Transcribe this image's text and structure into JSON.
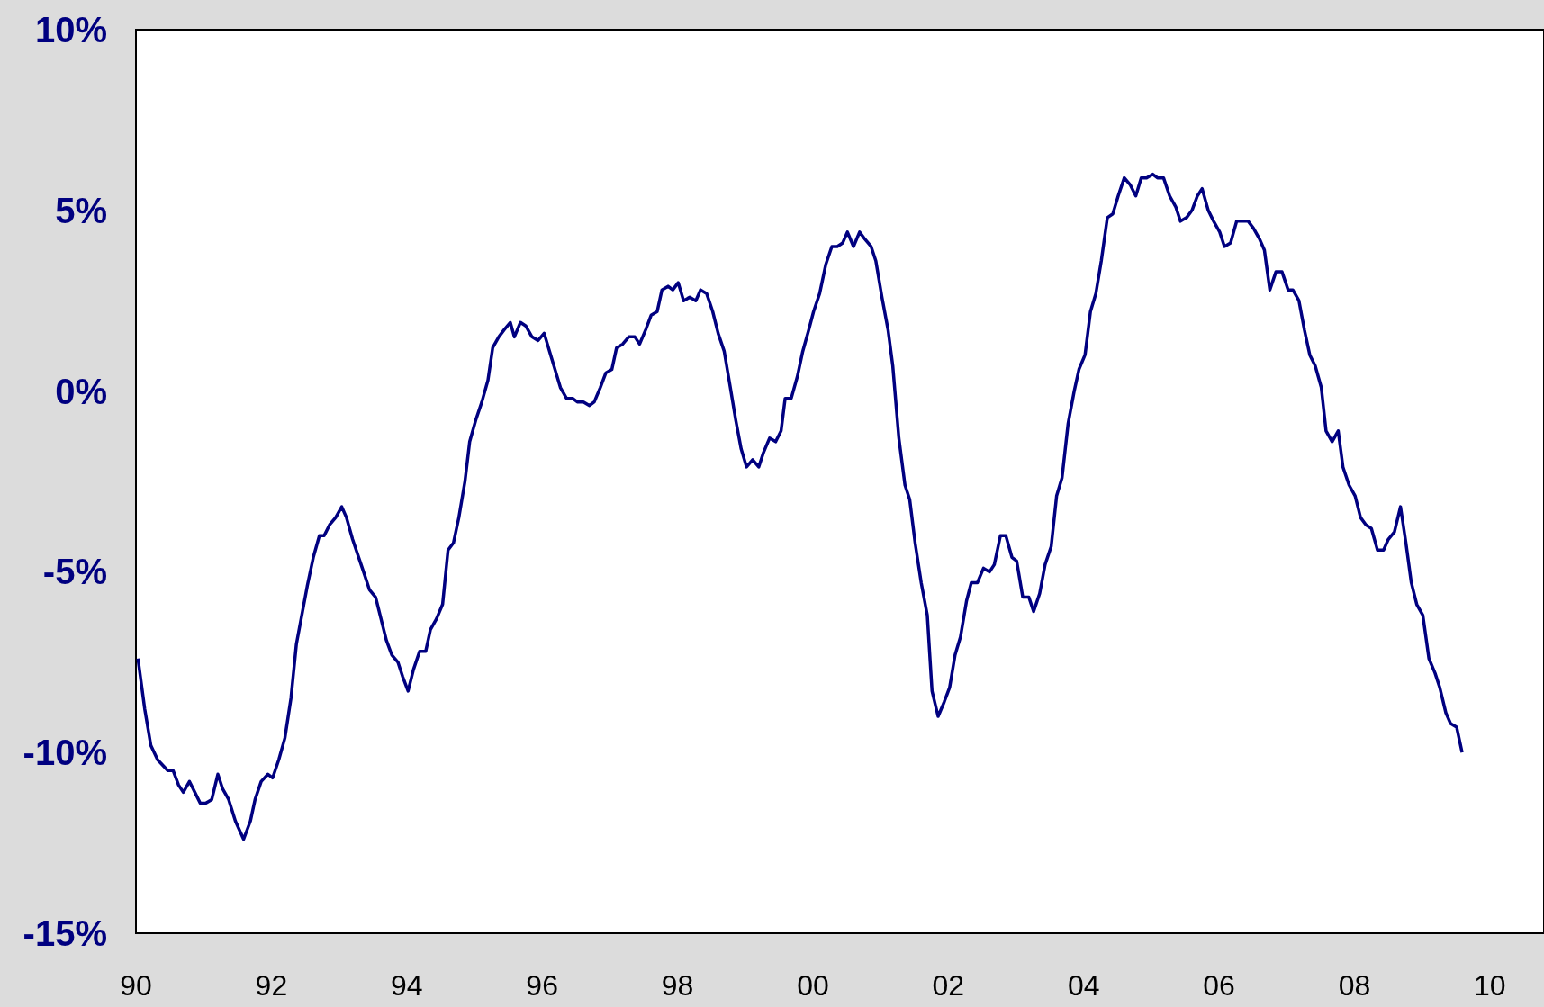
{
  "chart_data": {
    "type": "line",
    "x": [
      1990.03,
      1990.13,
      1990.22,
      1990.32,
      1990.47,
      1990.55,
      1990.63,
      1990.7,
      1990.79,
      1990.87,
      1990.95,
      1991.03,
      1991.12,
      1991.21,
      1991.28,
      1991.37,
      1991.47,
      1991.59,
      1991.69,
      1991.76,
      1991.85,
      1991.95,
      1992.02,
      1992.11,
      1992.2,
      1992.29,
      1992.37,
      1992.46,
      1992.53,
      1992.62,
      1992.71,
      1992.78,
      1992.86,
      1992.95,
      1993.04,
      1993.11,
      1993.2,
      1993.29,
      1993.38,
      1993.45,
      1993.54,
      1993.62,
      1993.7,
      1993.78,
      1993.87,
      1993.94,
      1994.02,
      1994.1,
      1994.19,
      1994.28,
      1994.35,
      1994.44,
      1994.53,
      1994.61,
      1994.69,
      1994.77,
      1994.86,
      1994.93,
      1995.02,
      1995.11,
      1995.2,
      1995.27,
      1995.36,
      1995.44,
      1995.53,
      1995.59,
      1995.68,
      1995.76,
      1995.85,
      1995.94,
      1996.03,
      1996.11,
      1996.19,
      1996.27,
      1996.36,
      1996.45,
      1996.52,
      1996.61,
      1996.7,
      1996.77,
      1996.86,
      1996.94,
      1997.03,
      1997.1,
      1997.19,
      1997.28,
      1997.37,
      1997.44,
      1997.53,
      1997.61,
      1997.7,
      1997.77,
      1997.86,
      1997.93,
      1998.01,
      1998.09,
      1998.18,
      1998.27,
      1998.34,
      1998.43,
      1998.52,
      1998.6,
      1998.69,
      1998.78,
      1998.86,
      1998.94,
      1999.02,
      1999.11,
      1999.2,
      1999.27,
      1999.36,
      1999.45,
      1999.53,
      1999.59,
      1999.68,
      1999.77,
      1999.85,
      1999.94,
      2000.01,
      2000.1,
      2000.19,
      2000.28,
      2000.36,
      2000.44,
      2000.51,
      2000.6,
      2000.69,
      2000.77,
      2000.86,
      2000.93,
      2001.02,
      2001.11,
      2001.18,
      2001.27,
      2001.36,
      2001.43,
      2001.51,
      2001.6,
      2001.69,
      2001.76,
      2001.85,
      2001.94,
      2002.02,
      2002.1,
      2002.18,
      2002.27,
      2002.34,
      2002.43,
      2002.52,
      2002.61,
      2002.68,
      2002.77,
      2002.85,
      2002.94,
      2003.01,
      2003.1,
      2003.19,
      2003.26,
      2003.35,
      2003.43,
      2003.52,
      2003.6,
      2003.68,
      2003.77,
      2003.86,
      2003.93,
      2004.02,
      2004.1,
      2004.18,
      2004.26,
      2004.35,
      2004.43,
      2004.51,
      2004.6,
      2004.69,
      2004.77,
      2004.85,
      2004.93,
      2005.02,
      2005.09,
      2005.18,
      2005.27,
      2005.36,
      2005.43,
      2005.52,
      2005.6,
      2005.68,
      2005.75,
      2005.84,
      2005.92,
      2006.01,
      2006.08,
      2006.17,
      2006.26,
      2006.35,
      2006.43,
      2006.51,
      2006.6,
      2006.67,
      2006.75,
      2006.84,
      2006.93,
      2007.02,
      2007.09,
      2007.18,
      2007.26,
      2007.34,
      2007.42,
      2007.51,
      2007.58,
      2007.67,
      2007.76,
      2007.83,
      2007.92,
      2008.01,
      2008.09,
      2008.17,
      2008.25,
      2008.34,
      2008.43,
      2008.5,
      2008.59,
      2008.68,
      2008.76,
      2008.84,
      2008.92,
      2009.01,
      2009.1,
      2009.19,
      2009.26,
      2009.35,
      2009.42,
      2009.51,
      2009.59
    ],
    "series": [
      {
        "color": "#000080",
        "values": [
          -7.4,
          -8.8,
          -9.8,
          -10.2,
          -10.5,
          -10.5,
          -10.9,
          -11.1,
          -10.8,
          -11.1,
          -11.4,
          -11.4,
          -11.3,
          -10.6,
          -11.0,
          -11.3,
          -11.9,
          -12.4,
          -11.9,
          -11.3,
          -10.8,
          -10.6,
          -10.7,
          -10.2,
          -9.6,
          -8.5,
          -7.0,
          -6.1,
          -5.4,
          -4.6,
          -4.0,
          -4.0,
          -3.7,
          -3.5,
          -3.2,
          -3.5,
          -4.1,
          -4.6,
          -5.1,
          -5.5,
          -5.7,
          -6.3,
          -6.9,
          -7.3,
          -7.5,
          -7.9,
          -8.3,
          -7.7,
          -7.2,
          -7.2,
          -6.6,
          -6.3,
          -5.9,
          -4.4,
          -4.2,
          -3.5,
          -2.5,
          -1.4,
          -0.8,
          -0.3,
          0.3,
          1.2,
          1.5,
          1.7,
          1.9,
          1.5,
          1.9,
          1.8,
          1.5,
          1.4,
          1.6,
          1.1,
          0.6,
          0.1,
          -0.2,
          -0.2,
          -0.3,
          -0.3,
          -0.4,
          -0.3,
          0.1,
          0.5,
          0.6,
          1.2,
          1.3,
          1.5,
          1.5,
          1.3,
          1.7,
          2.1,
          2.2,
          2.8,
          2.9,
          2.8,
          3.0,
          2.5,
          2.6,
          2.5,
          2.8,
          2.7,
          2.2,
          1.6,
          1.1,
          0.1,
          -0.8,
          -1.6,
          -2.1,
          -1.9,
          -2.1,
          -1.7,
          -1.3,
          -1.4,
          -1.1,
          -0.2,
          -0.2,
          0.4,
          1.1,
          1.7,
          2.2,
          2.7,
          3.5,
          4.0,
          4.0,
          4.1,
          4.4,
          4.0,
          4.4,
          4.2,
          4.0,
          3.6,
          2.6,
          1.7,
          0.7,
          -1.3,
          -2.6,
          -3.0,
          -4.2,
          -5.3,
          -6.2,
          -8.3,
          -9.0,
          -8.6,
          -8.2,
          -7.3,
          -6.8,
          -5.8,
          -5.3,
          -5.3,
          -4.9,
          -5.0,
          -4.8,
          -4.0,
          -4.0,
          -4.6,
          -4.7,
          -5.7,
          -5.7,
          -6.1,
          -5.6,
          -4.8,
          -4.3,
          -2.9,
          -2.4,
          -0.9,
          0.0,
          0.6,
          1.0,
          2.2,
          2.7,
          3.6,
          4.8,
          4.9,
          5.4,
          5.9,
          5.7,
          5.4,
          5.9,
          5.9,
          6.0,
          5.9,
          5.9,
          5.4,
          5.1,
          4.7,
          4.8,
          5.0,
          5.4,
          5.6,
          5.0,
          4.7,
          4.4,
          4.0,
          4.1,
          4.7,
          4.7,
          4.7,
          4.5,
          4.2,
          3.9,
          2.8,
          3.3,
          3.3,
          2.8,
          2.8,
          2.5,
          1.7,
          1.0,
          0.7,
          0.1,
          -1.1,
          -1.4,
          -1.1,
          -2.1,
          -2.6,
          -2.9,
          -3.5,
          -3.7,
          -3.8,
          -4.4,
          -4.4,
          -4.1,
          -3.9,
          -3.2,
          -4.2,
          -5.3,
          -5.9,
          -6.2,
          -7.4,
          -7.8,
          -8.2,
          -8.9,
          -9.2,
          -9.3,
          -10.0
        ]
      }
    ],
    "xlim": [
      1990,
      2010.8
    ],
    "xticks": [
      {
        "value": 1990,
        "label": "90"
      },
      {
        "value": 1992,
        "label": "92"
      },
      {
        "value": 1994,
        "label": "94"
      },
      {
        "value": 1996,
        "label": "96"
      },
      {
        "value": 1998,
        "label": "98"
      },
      {
        "value": 2000,
        "label": "00"
      },
      {
        "value": 2002,
        "label": "02"
      },
      {
        "value": 2004,
        "label": "04"
      },
      {
        "value": 2006,
        "label": "06"
      },
      {
        "value": 2008,
        "label": "08"
      },
      {
        "value": 2010,
        "label": "10"
      }
    ],
    "ylim": [
      -15,
      10
    ],
    "yticks": [
      {
        "value": -15,
        "label": "-15%"
      },
      {
        "value": -10,
        "label": "-10%"
      },
      {
        "value": -5,
        "label": "-5%"
      },
      {
        "value": 0,
        "label": "0%"
      },
      {
        "value": 5,
        "label": "5%"
      },
      {
        "value": 10,
        "label": "10%"
      }
    ],
    "grid": false,
    "marker": "none",
    "line_style": "solid"
  }
}
